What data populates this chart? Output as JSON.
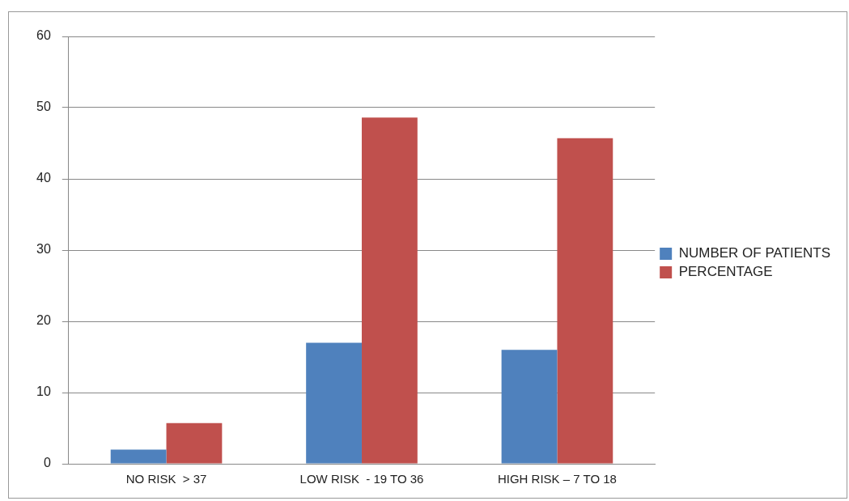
{
  "chart_data": {
    "type": "bar",
    "categories": [
      "NO RISK  > 37",
      "LOW RISK  - 19 TO 36",
      "HIGH RISK – 7 TO 18"
    ],
    "series": [
      {
        "name": "NUMBER OF PATIENTS",
        "color": "#4f81bd",
        "values": [
          2,
          17,
          16
        ]
      },
      {
        "name": "PERCENTAGE",
        "color": "#c0504d",
        "values": [
          5.7,
          48.6,
          45.7
        ]
      }
    ],
    "ylim": [
      0,
      60
    ],
    "yticks": [
      0,
      10,
      20,
      30,
      40,
      50,
      60
    ],
    "grid": "y",
    "legend": "right"
  }
}
